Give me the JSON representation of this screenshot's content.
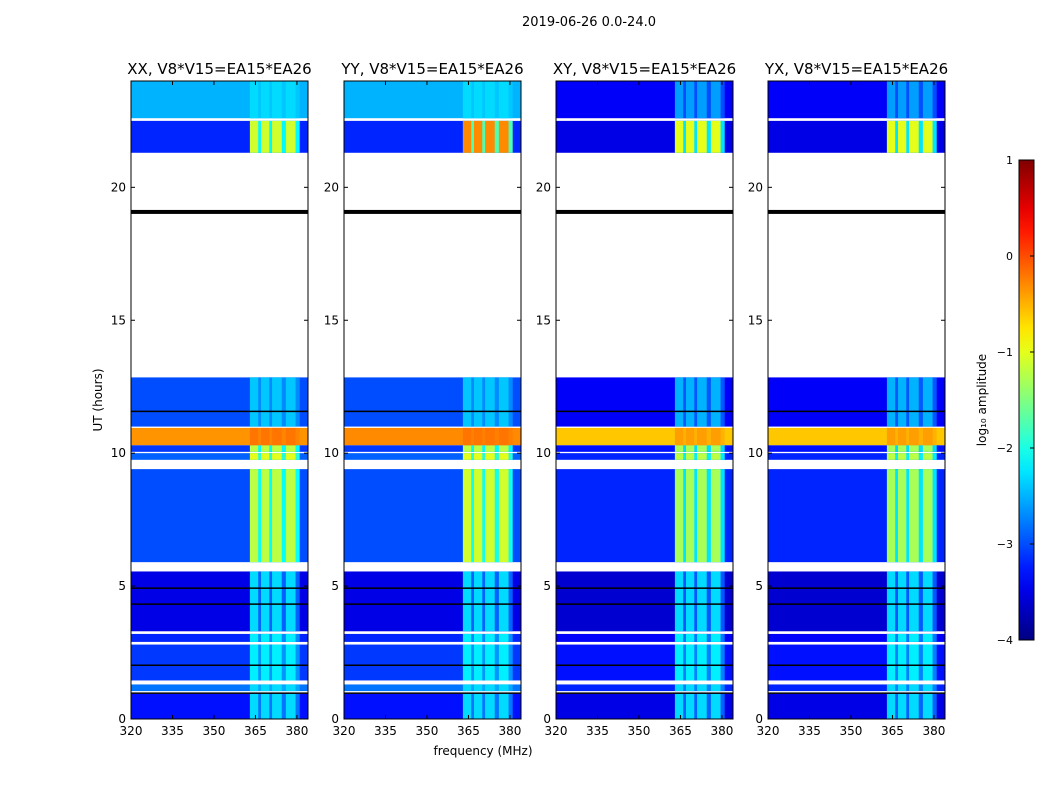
{
  "chart_data": {
    "type": "heatmap",
    "suptitle": "2019-06-26 0.0-24.0",
    "xlabel": "frequency (MHz)",
    "ylabel": "UT (hours)",
    "xlim": [
      320,
      384
    ],
    "ylim": [
      0,
      24
    ],
    "xticks": [
      320,
      335,
      350,
      365,
      380
    ],
    "yticks": [
      0,
      5,
      10,
      15,
      20
    ],
    "colorbar": {
      "label": "log₁₀ amplitude",
      "range": [
        -4,
        1
      ],
      "ticks": [
        1,
        0,
        -1,
        -2,
        -3,
        -4
      ],
      "tick_labels": [
        "1",
        "0",
        "−1",
        "−2",
        "−3",
        "−4"
      ],
      "colormap": "jet"
    },
    "rfi_columns_mhz": [
      [
        363,
        366
      ],
      [
        367,
        370
      ],
      [
        371,
        374.5
      ],
      [
        376,
        379.5
      ]
    ],
    "flagged_black_ut": [
      [
        19.0,
        19.15
      ],
      [
        0.95,
        1.0
      ],
      [
        4.3,
        4.35
      ],
      [
        4.9,
        4.95
      ],
      [
        2.0,
        2.05
      ],
      [
        11.55,
        11.6
      ]
    ],
    "panels": [
      {
        "title": "XX, V8*V15=EA15*EA26",
        "segments": [
          {
            "ut": [
              0,
              0.95
            ],
            "level": -3.3,
            "rfi": -2.3
          },
          {
            "ut": [
              1.05,
              1.3
            ],
            "level": -2.8,
            "rfi": -2.3
          },
          {
            "ut": [
              1.45,
              2.8
            ],
            "level": -3.1,
            "rfi": -2.2
          },
          {
            "ut": [
              2.9,
              3.2
            ],
            "level": -3.2,
            "rfi": -2.2
          },
          {
            "ut": [
              3.3,
              5.55
            ],
            "level": -3.5,
            "rfi": -2.3
          },
          {
            "ut": [
              5.9,
              9.4
            ],
            "level": -3.0,
            "rfi": -1.2
          },
          {
            "ut": [
              9.75,
              10.0
            ],
            "level": -2.9,
            "rfi": -1.0
          },
          {
            "ut": [
              10.05,
              10.3
            ],
            "level": -3.1,
            "rfi": -1.2
          },
          {
            "ut": [
              10.3,
              10.95
            ],
            "level": -0.35,
            "rfi": -0.2
          },
          {
            "ut": [
              11.0,
              12.85
            ],
            "level": -3.0,
            "rfi": -2.4
          },
          {
            "ut": [
              21.3,
              22.5
            ],
            "level": -3.2,
            "rfi": -1.1
          },
          {
            "ut": [
              22.6,
              24
            ],
            "level": -2.5,
            "rfi": -2.3
          }
        ]
      },
      {
        "title": "YY, V8*V15=EA15*EA26",
        "segments": [
          {
            "ut": [
              0,
              0.95
            ],
            "level": -3.3,
            "rfi": -2.3
          },
          {
            "ut": [
              1.05,
              1.3
            ],
            "level": -2.8,
            "rfi": -2.3
          },
          {
            "ut": [
              1.45,
              2.8
            ],
            "level": -3.1,
            "rfi": -2.2
          },
          {
            "ut": [
              2.9,
              3.2
            ],
            "level": -3.2,
            "rfi": -2.2
          },
          {
            "ut": [
              3.3,
              5.55
            ],
            "level": -3.5,
            "rfi": -2.3
          },
          {
            "ut": [
              5.9,
              9.4
            ],
            "level": -3.0,
            "rfi": -1.1
          },
          {
            "ut": [
              9.75,
              10.0
            ],
            "level": -2.9,
            "rfi": -1.0
          },
          {
            "ut": [
              10.05,
              10.3
            ],
            "level": -3.1,
            "rfi": -1.2
          },
          {
            "ut": [
              10.3,
              10.95
            ],
            "level": -0.3,
            "rfi": -0.2
          },
          {
            "ut": [
              11.0,
              12.85
            ],
            "level": -3.0,
            "rfi": -2.4
          },
          {
            "ut": [
              21.3,
              22.5
            ],
            "level": -3.2,
            "rfi": -0.3
          },
          {
            "ut": [
              22.6,
              24
            ],
            "level": -2.5,
            "rfi": -2.3
          }
        ]
      },
      {
        "title": "XY, V8*V15=EA15*EA26",
        "segments": [
          {
            "ut": [
              0,
              0.95
            ],
            "level": -3.5,
            "rfi": -2.3
          },
          {
            "ut": [
              1.05,
              1.3
            ],
            "level": -3.2,
            "rfi": -2.3
          },
          {
            "ut": [
              1.45,
              2.8
            ],
            "level": -3.3,
            "rfi": -2.2
          },
          {
            "ut": [
              2.9,
              3.2
            ],
            "level": -3.4,
            "rfi": -2.2
          },
          {
            "ut": [
              3.3,
              5.55
            ],
            "level": -3.6,
            "rfi": -2.3
          },
          {
            "ut": [
              5.9,
              9.4
            ],
            "level": -3.2,
            "rfi": -1.3
          },
          {
            "ut": [
              9.75,
              10.0
            ],
            "level": -3.2,
            "rfi": -1.2
          },
          {
            "ut": [
              10.05,
              10.3
            ],
            "level": -3.3,
            "rfi": -1.3
          },
          {
            "ut": [
              10.3,
              10.95
            ],
            "level": -0.6,
            "rfi": -0.4
          },
          {
            "ut": [
              11.0,
              12.85
            ],
            "level": -3.4,
            "rfi": -2.5
          },
          {
            "ut": [
              21.3,
              22.5
            ],
            "level": -3.5,
            "rfi": -1.0
          },
          {
            "ut": [
              22.6,
              24
            ],
            "level": -3.4,
            "rfi": -2.6
          }
        ]
      },
      {
        "title": "YX, V8*V15=EA15*EA26",
        "segments": [
          {
            "ut": [
              0,
              0.95
            ],
            "level": -3.5,
            "rfi": -2.3
          },
          {
            "ut": [
              1.05,
              1.3
            ],
            "level": -3.2,
            "rfi": -2.3
          },
          {
            "ut": [
              1.45,
              2.8
            ],
            "level": -3.3,
            "rfi": -2.2
          },
          {
            "ut": [
              2.9,
              3.2
            ],
            "level": -3.4,
            "rfi": -2.2
          },
          {
            "ut": [
              3.3,
              5.55
            ],
            "level": -3.6,
            "rfi": -2.3
          },
          {
            "ut": [
              5.9,
              9.4
            ],
            "level": -3.2,
            "rfi": -1.3
          },
          {
            "ut": [
              9.75,
              10.0
            ],
            "level": -3.2,
            "rfi": -1.2
          },
          {
            "ut": [
              10.05,
              10.3
            ],
            "level": -3.3,
            "rfi": -1.3
          },
          {
            "ut": [
              10.3,
              10.95
            ],
            "level": -0.6,
            "rfi": -0.4
          },
          {
            "ut": [
              11.0,
              12.85
            ],
            "level": -3.4,
            "rfi": -2.5
          },
          {
            "ut": [
              21.3,
              22.5
            ],
            "level": -3.5,
            "rfi": -1.0
          },
          {
            "ut": [
              22.6,
              24
            ],
            "level": -3.4,
            "rfi": -2.6
          }
        ]
      }
    ]
  }
}
